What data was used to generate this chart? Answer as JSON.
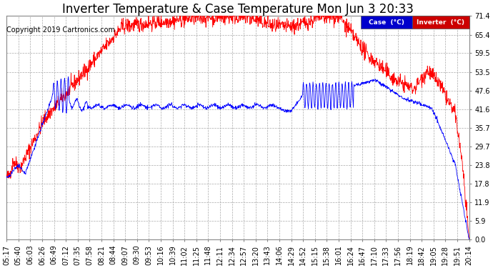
{
  "title": "Inverter Temperature & Case Temperature Mon Jun 3 20:33",
  "copyright": "Copyright 2019 Cartronics.com",
  "legend_case_label": "Case  (°C)",
  "legend_inverter_label": "Inverter  (°C)",
  "case_color": "#0000ff",
  "inverter_color": "#ff0000",
  "legend_case_bg": "#0000cc",
  "legend_inverter_bg": "#cc0000",
  "yticks": [
    0.0,
    5.9,
    11.9,
    17.8,
    23.8,
    29.7,
    35.7,
    41.6,
    47.6,
    53.5,
    59.5,
    65.4,
    71.4
  ],
  "ylim": [
    0.0,
    71.4
  ],
  "background_color": "#ffffff",
  "plot_bg_color": "#ffffff",
  "grid_color": "#aaaaaa",
  "title_fontsize": 12,
  "copyright_fontsize": 7,
  "tick_fontsize": 7,
  "x_tick_rotation": 90,
  "xtick_labels": [
    "05:17",
    "05:40",
    "06:03",
    "06:26",
    "06:49",
    "07:12",
    "07:35",
    "07:58",
    "08:21",
    "08:44",
    "09:07",
    "09:30",
    "09:53",
    "10:16",
    "10:39",
    "11:02",
    "11:25",
    "11:48",
    "12:11",
    "12:34",
    "12:57",
    "13:20",
    "13:43",
    "14:06",
    "14:29",
    "14:52",
    "15:15",
    "15:38",
    "16:01",
    "16:24",
    "16:47",
    "17:10",
    "17:33",
    "17:56",
    "18:19",
    "18:42",
    "19:05",
    "19:28",
    "19:51",
    "20:14"
  ]
}
